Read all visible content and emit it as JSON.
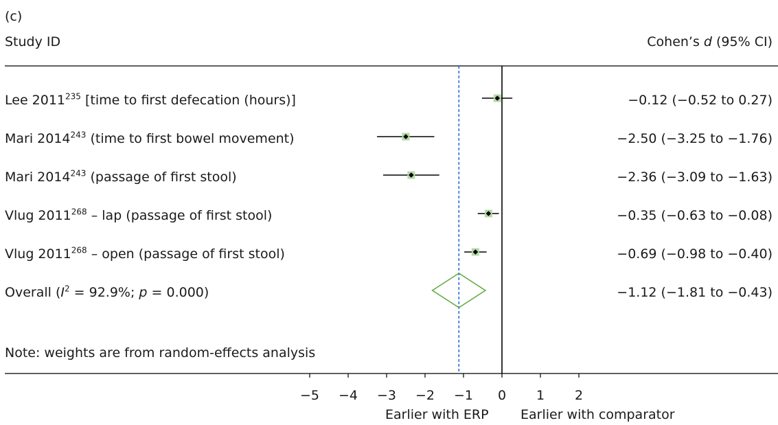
{
  "panel_label": "(c)",
  "header": {
    "study_col": "Study ID",
    "effect_col_prefix": "Cohen’s ",
    "effect_col_italic": "d",
    "effect_col_suffix": " (95% CI)"
  },
  "studies": [
    {
      "name": "Lee 2011",
      "ref": "235",
      "outcome": " [time to first defecation (hours)]",
      "ci_text": "−0.12 (−0.52 to 0.27)"
    },
    {
      "name": "Mari 2014",
      "ref": "243",
      "outcome": " (time to first bowel movement)",
      "ci_text": "−2.50 (−3.25 to −1.76)"
    },
    {
      "name": "Mari 2014",
      "ref": "243",
      "outcome": " (passage of first stool)",
      "ci_text": "−2.36 (−3.09 to −1.63)"
    },
    {
      "name": "Vlug 2011",
      "ref": "268",
      "outcome": " – lap (passage of first stool)",
      "ci_text": "−0.35 (−0.63 to −0.08)"
    },
    {
      "name": "Vlug 2011",
      "ref": "268",
      "outcome": " – open (passage of first stool)",
      "ci_text": "−0.69 (−0.98 to −0.40)"
    }
  ],
  "overall": {
    "prefix": "Overall (",
    "i2_italic": "I",
    "i2_sup": "2",
    "i2_rest": " = 92.9%; ",
    "p_italic": "p",
    "p_rest": " = 0.000)",
    "ci_text": "−1.12 (−1.81 to −0.43)"
  },
  "note": "Note: weights are from random-effects analysis",
  "axis": {
    "left_label": "Earlier with ERP",
    "right_label": "Earlier with comparator"
  },
  "colors": {
    "ci_line": "#000000",
    "weight_box": "#b5d9a8",
    "diamond": "#5aa83e",
    "overall_line": "#2a6fd6",
    "null_line": "#000000"
  },
  "chart_data": {
    "type": "forest",
    "xlim": [
      -5,
      2
    ],
    "xticks": [
      -5,
      -4,
      -3,
      -2,
      -1,
      0,
      1,
      2
    ],
    "xtick_labels": [
      "−5",
      "−4",
      "−3",
      "−2",
      "−1",
      "0",
      "1",
      "2"
    ],
    "null_value": 0,
    "series": [
      {
        "study": "Lee 2011 [time to first defecation (hours)]",
        "d": -0.12,
        "lo": -0.52,
        "hi": 0.27
      },
      {
        "study": "Mari 2014 (time to first bowel movement)",
        "d": -2.5,
        "lo": -3.25,
        "hi": -1.76
      },
      {
        "study": "Mari 2014 (passage of first stool)",
        "d": -2.36,
        "lo": -3.09,
        "hi": -1.63
      },
      {
        "study": "Vlug 2011 – lap (passage of first stool)",
        "d": -0.35,
        "lo": -0.63,
        "hi": -0.08
      },
      {
        "study": "Vlug 2011 – open (passage of first stool)",
        "d": -0.69,
        "lo": -0.98,
        "hi": -0.4
      }
    ],
    "overall": {
      "d": -1.12,
      "lo": -1.81,
      "hi": -0.43,
      "I2": 92.9,
      "p": 0.0
    }
  }
}
